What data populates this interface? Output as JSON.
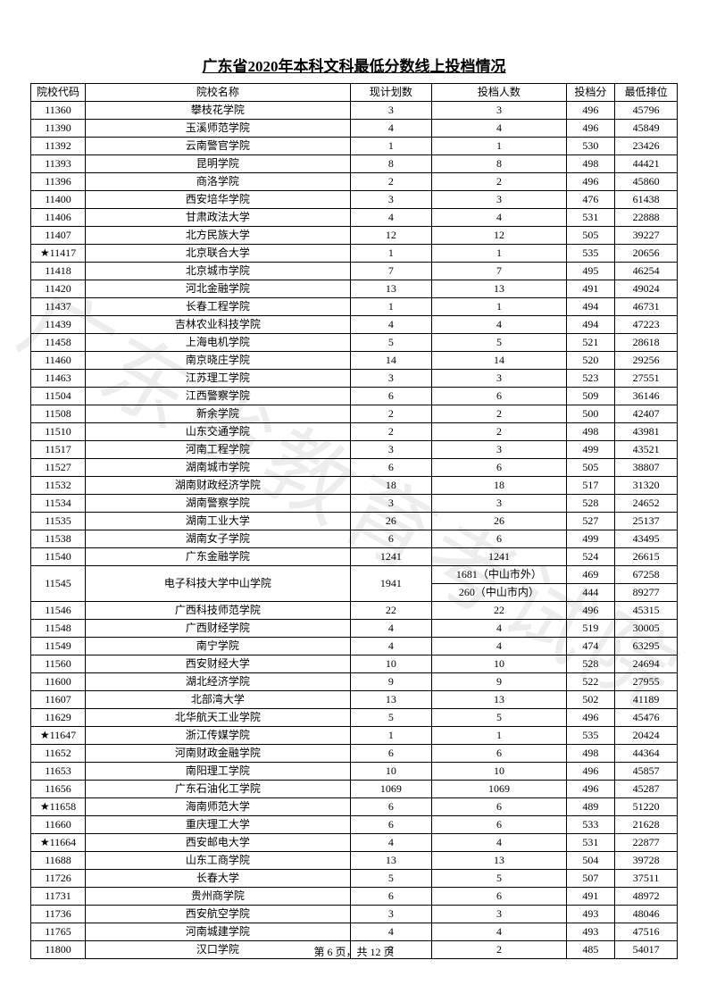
{
  "title": "广东省2020年本科文科最低分数线上投档情况",
  "watermark": "广东省教育考试院",
  "footer": "第 6 页，共 12 页",
  "headers": {
    "code": "院校代码",
    "name": "院校名称",
    "plan": "现计划数",
    "num": "投档人数",
    "score": "投档分",
    "rank": "最低排位"
  },
  "rows": [
    {
      "code": "11360",
      "name": "攀枝花学院",
      "plan": "3",
      "num": "3",
      "score": "496",
      "rank": "45796"
    },
    {
      "code": "11390",
      "name": "玉溪师范学院",
      "plan": "4",
      "num": "4",
      "score": "496",
      "rank": "45849"
    },
    {
      "code": "11392",
      "name": "云南警官学院",
      "plan": "1",
      "num": "1",
      "score": "530",
      "rank": "23426"
    },
    {
      "code": "11393",
      "name": "昆明学院",
      "plan": "8",
      "num": "8",
      "score": "498",
      "rank": "44421"
    },
    {
      "code": "11396",
      "name": "商洛学院",
      "plan": "2",
      "num": "2",
      "score": "496",
      "rank": "45860"
    },
    {
      "code": "11400",
      "name": "西安培华学院",
      "plan": "3",
      "num": "3",
      "score": "476",
      "rank": "61438"
    },
    {
      "code": "11406",
      "name": "甘肃政法大学",
      "plan": "4",
      "num": "4",
      "score": "531",
      "rank": "22888"
    },
    {
      "code": "11407",
      "name": "北方民族大学",
      "plan": "12",
      "num": "12",
      "score": "505",
      "rank": "39227"
    },
    {
      "code": "★11417",
      "name": "北京联合大学",
      "plan": "1",
      "num": "1",
      "score": "535",
      "rank": "20656"
    },
    {
      "code": "11418",
      "name": "北京城市学院",
      "plan": "7",
      "num": "7",
      "score": "495",
      "rank": "46254"
    },
    {
      "code": "11420",
      "name": "河北金融学院",
      "plan": "13",
      "num": "13",
      "score": "491",
      "rank": "49024"
    },
    {
      "code": "11437",
      "name": "长春工程学院",
      "plan": "1",
      "num": "1",
      "score": "494",
      "rank": "46731"
    },
    {
      "code": "11439",
      "name": "吉林农业科技学院",
      "plan": "4",
      "num": "4",
      "score": "494",
      "rank": "47223"
    },
    {
      "code": "11458",
      "name": "上海电机学院",
      "plan": "5",
      "num": "5",
      "score": "521",
      "rank": "28618"
    },
    {
      "code": "11460",
      "name": "南京晓庄学院",
      "plan": "14",
      "num": "14",
      "score": "520",
      "rank": "29256"
    },
    {
      "code": "11463",
      "name": "江苏理工学院",
      "plan": "3",
      "num": "3",
      "score": "523",
      "rank": "27551"
    },
    {
      "code": "11504",
      "name": "江西警察学院",
      "plan": "6",
      "num": "6",
      "score": "509",
      "rank": "36146"
    },
    {
      "code": "11508",
      "name": "新余学院",
      "plan": "2",
      "num": "2",
      "score": "500",
      "rank": "42407"
    },
    {
      "code": "11510",
      "name": "山东交通学院",
      "plan": "2",
      "num": "2",
      "score": "498",
      "rank": "43981"
    },
    {
      "code": "11517",
      "name": "河南工程学院",
      "plan": "3",
      "num": "3",
      "score": "499",
      "rank": "43521"
    },
    {
      "code": "11527",
      "name": "湖南城市学院",
      "plan": "6",
      "num": "6",
      "score": "505",
      "rank": "38807"
    },
    {
      "code": "11532",
      "name": "湖南财政经济学院",
      "plan": "18",
      "num": "18",
      "score": "517",
      "rank": "31320"
    },
    {
      "code": "11534",
      "name": "湖南警察学院",
      "plan": "3",
      "num": "3",
      "score": "528",
      "rank": "24652"
    },
    {
      "code": "11535",
      "name": "湖南工业大学",
      "plan": "26",
      "num": "26",
      "score": "527",
      "rank": "25137"
    },
    {
      "code": "11538",
      "name": "湖南女子学院",
      "plan": "6",
      "num": "6",
      "score": "499",
      "rank": "43495"
    },
    {
      "code": "11540",
      "name": "广东金融学院",
      "plan": "1241",
      "num": "1241",
      "score": "524",
      "rank": "26615"
    },
    {
      "code": "11545",
      "name": "电子科技大学中山学院",
      "plan": "1941",
      "split": [
        {
          "num": "1681（中山市外）",
          "score": "469",
          "rank": "67258"
        },
        {
          "num": "260（中山市内）",
          "score": "444",
          "rank": "89277"
        }
      ]
    },
    {
      "code": "11546",
      "name": "广西科技师范学院",
      "plan": "22",
      "num": "22",
      "score": "496",
      "rank": "45315"
    },
    {
      "code": "11548",
      "name": "广西财经学院",
      "plan": "4",
      "num": "4",
      "score": "519",
      "rank": "30005"
    },
    {
      "code": "11549",
      "name": "南宁学院",
      "plan": "4",
      "num": "4",
      "score": "474",
      "rank": "63295"
    },
    {
      "code": "11560",
      "name": "西安财经大学",
      "plan": "10",
      "num": "10",
      "score": "528",
      "rank": "24694"
    },
    {
      "code": "11600",
      "name": "湖北经济学院",
      "plan": "9",
      "num": "9",
      "score": "522",
      "rank": "27955"
    },
    {
      "code": "11607",
      "name": "北部湾大学",
      "plan": "13",
      "num": "13",
      "score": "502",
      "rank": "41189"
    },
    {
      "code": "11629",
      "name": "北华航天工业学院",
      "plan": "5",
      "num": "5",
      "score": "496",
      "rank": "45476"
    },
    {
      "code": "★11647",
      "name": "浙江传媒学院",
      "plan": "1",
      "num": "1",
      "score": "535",
      "rank": "20424"
    },
    {
      "code": "11652",
      "name": "河南财政金融学院",
      "plan": "6",
      "num": "6",
      "score": "498",
      "rank": "44364"
    },
    {
      "code": "11653",
      "name": "南阳理工学院",
      "plan": "10",
      "num": "10",
      "score": "496",
      "rank": "45857"
    },
    {
      "code": "11656",
      "name": "广东石油化工学院",
      "plan": "1069",
      "num": "1069",
      "score": "496",
      "rank": "45287"
    },
    {
      "code": "★11658",
      "name": "海南师范大学",
      "plan": "6",
      "num": "6",
      "score": "489",
      "rank": "51220"
    },
    {
      "code": "11660",
      "name": "重庆理工大学",
      "plan": "6",
      "num": "6",
      "score": "533",
      "rank": "21628"
    },
    {
      "code": "★11664",
      "name": "西安邮电大学",
      "plan": "4",
      "num": "4",
      "score": "531",
      "rank": "22877"
    },
    {
      "code": "11688",
      "name": "山东工商学院",
      "plan": "13",
      "num": "13",
      "score": "504",
      "rank": "39728"
    },
    {
      "code": "11726",
      "name": "长春大学",
      "plan": "5",
      "num": "5",
      "score": "507",
      "rank": "37511"
    },
    {
      "code": "11731",
      "name": "贵州商学院",
      "plan": "6",
      "num": "6",
      "score": "491",
      "rank": "48972"
    },
    {
      "code": "11736",
      "name": "西安航空学院",
      "plan": "3",
      "num": "3",
      "score": "493",
      "rank": "48046"
    },
    {
      "code": "11765",
      "name": "河南城建学院",
      "plan": "4",
      "num": "4",
      "score": "493",
      "rank": "47516"
    },
    {
      "code": "11800",
      "name": "汉口学院",
      "plan": "2",
      "num": "2",
      "score": "485",
      "rank": "54017"
    }
  ]
}
